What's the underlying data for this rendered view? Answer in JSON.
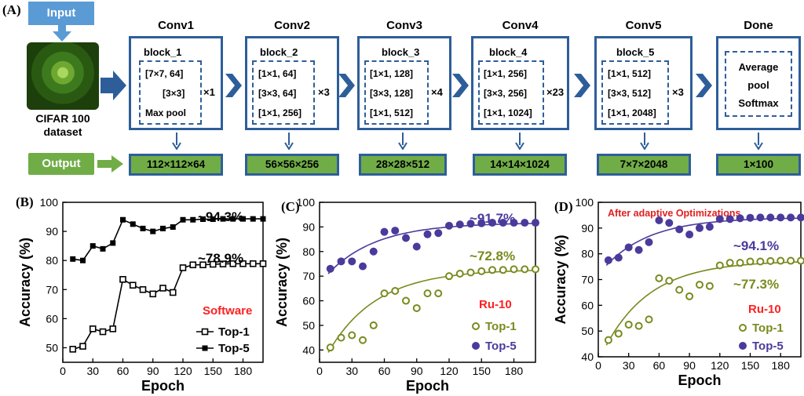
{
  "labels": {
    "A": "(A)",
    "B": "(B)",
    "C": "(C)",
    "D": "(D)"
  },
  "diagram": {
    "input_label": "Input",
    "dataset_line1": "CIFAR 100",
    "dataset_line2": "dataset",
    "output_label": "Output",
    "stages": [
      {
        "title": "Conv1",
        "block": "block_1",
        "entries": [
          "[7×7, 64]",
          "[3×3]",
          "Max pool"
        ],
        "mult": "×1",
        "out": "112×112×64"
      },
      {
        "title": "Conv2",
        "block": "block_2",
        "entries": [
          "[1×1, 64]",
          "[3×3, 64]",
          "[1×1, 256]"
        ],
        "mult": "×3",
        "out": "56×56×256"
      },
      {
        "title": "Conv3",
        "block": "block_3",
        "entries": [
          "[1×1, 128]",
          "[3×3, 128]",
          "[1×1, 512]"
        ],
        "mult": "×4",
        "out": "28×28×512"
      },
      {
        "title": "Conv4",
        "block": "block_4",
        "entries": [
          "[1×1, 256]",
          "[3×3, 256]",
          "[1×1, 1024]"
        ],
        "mult": "×23",
        "out": "14×14×1024"
      },
      {
        "title": "Conv5",
        "block": "block_5",
        "entries": [
          "[1×1, 512]",
          "[3×3, 512]",
          "[1×1, 2048]"
        ],
        "mult": "×3",
        "out": "7×7×2048"
      },
      {
        "title": "Done",
        "block": "",
        "entries": [
          "Average",
          "pool",
          "Softmax"
        ],
        "mult": "",
        "out": "1×100"
      }
    ]
  },
  "colors": {
    "blue_arrow": "#2e5e9a",
    "input_blue": "#5a9bd5",
    "output_green": "#70ad47",
    "series_olive": "#7a8a1e",
    "series_purple": "#4b3a9c",
    "software_red": "#ff2020"
  },
  "chart_data": [
    {
      "type": "line",
      "xlabel": "Epoch",
      "ylabel": "Accuracy (%)",
      "xlim": [
        0,
        200
      ],
      "ylim": [
        45,
        100
      ],
      "xticks": [
        0,
        30,
        60,
        90,
        120,
        150,
        180
      ],
      "yticks": [
        50,
        60,
        70,
        80,
        90,
        100
      ],
      "annotation": "Software",
      "top5_label": "~94.3%",
      "top1_label": "~78.9%",
      "series": [
        {
          "name": "Top-1",
          "marker": "open-square",
          "x": [
            10,
            20,
            30,
            40,
            50,
            60,
            70,
            80,
            90,
            100,
            110,
            120,
            130,
            140,
            150,
            160,
            170,
            180,
            190,
            200
          ],
          "y": [
            49.5,
            50.5,
            56.5,
            55.5,
            56.5,
            73.5,
            71.5,
            70,
            68.5,
            70.5,
            69,
            77.5,
            78.5,
            78.5,
            78.7,
            78.8,
            78.9,
            78.9,
            78.9,
            78.9
          ]
        },
        {
          "name": "Top-5",
          "marker": "filled-square",
          "x": [
            10,
            20,
            30,
            40,
            50,
            60,
            70,
            80,
            90,
            100,
            110,
            120,
            130,
            140,
            150,
            160,
            170,
            180,
            190,
            200
          ],
          "y": [
            80.5,
            80,
            85,
            84,
            86,
            94,
            92.5,
            91,
            90,
            91,
            91.5,
            94,
            94,
            94.2,
            94.2,
            94.3,
            94.3,
            94.3,
            94.3,
            94.3
          ]
        }
      ]
    },
    {
      "type": "scatter",
      "xlabel": "Epoch",
      "ylabel": "Accuracy (%)",
      "xlim": [
        0,
        200
      ],
      "ylim": [
        35,
        100
      ],
      "xticks": [
        0,
        30,
        60,
        90,
        120,
        150,
        180
      ],
      "yticks": [
        40,
        50,
        60,
        70,
        80,
        90,
        100
      ],
      "annotation": "Ru-10",
      "top5_label": "~91.7%",
      "top1_label": "~72.8%",
      "series": [
        {
          "name": "Top-1",
          "marker": "open-circle",
          "x": [
            10,
            20,
            30,
            40,
            50,
            60,
            70,
            80,
            90,
            100,
            110,
            120,
            130,
            140,
            150,
            160,
            170,
            180,
            190,
            200
          ],
          "y": [
            41,
            45,
            46,
            44,
            50,
            63,
            64,
            60,
            57,
            63,
            63,
            70,
            71,
            71.5,
            72,
            72.5,
            72.5,
            72.8,
            72.8,
            72.8
          ]
        },
        {
          "name": "Top-5",
          "marker": "filled-circle",
          "x": [
            10,
            20,
            30,
            40,
            50,
            60,
            70,
            80,
            90,
            100,
            110,
            120,
            130,
            140,
            150,
            160,
            170,
            180,
            190,
            200
          ],
          "y": [
            73,
            76,
            76,
            74,
            80,
            88,
            88.5,
            85.5,
            82,
            87,
            87.5,
            90.5,
            91,
            91.3,
            91.5,
            91.7,
            91.7,
            91.7,
            91.7,
            91.7
          ]
        }
      ]
    },
    {
      "type": "scatter",
      "title": "After adaptive Optimizations",
      "xlabel": "Epoch",
      "ylabel": "Accuracy (%)",
      "xlim": [
        0,
        200
      ],
      "ylim": [
        40,
        100
      ],
      "xticks": [
        0,
        30,
        60,
        90,
        120,
        150,
        180
      ],
      "yticks": [
        40,
        50,
        60,
        70,
        80,
        90,
        100
      ],
      "annotation": "Ru-10",
      "top5_label": "~94.1%",
      "top1_label": "~77.3%",
      "series": [
        {
          "name": "Top-1",
          "marker": "open-circle",
          "x": [
            10,
            20,
            30,
            40,
            50,
            60,
            70,
            80,
            90,
            100,
            110,
            120,
            130,
            140,
            150,
            160,
            170,
            180,
            190,
            200
          ],
          "y": [
            46.5,
            49,
            52.5,
            52,
            54.5,
            70.5,
            69.5,
            66,
            63.5,
            68,
            67.5,
            75.5,
            76.5,
            76.5,
            77,
            77,
            77.2,
            77.3,
            77.3,
            77.3
          ]
        },
        {
          "name": "Top-5",
          "marker": "filled-circle",
          "x": [
            10,
            20,
            30,
            40,
            50,
            60,
            70,
            80,
            90,
            100,
            110,
            120,
            130,
            140,
            150,
            160,
            170,
            180,
            190,
            200
          ],
          "y": [
            77.5,
            78.5,
            82.5,
            81.5,
            84.5,
            93,
            92,
            89.5,
            87.5,
            90,
            90.5,
            93.5,
            93.5,
            93.8,
            94,
            94.1,
            94.1,
            94.1,
            94.1,
            94.1
          ]
        }
      ]
    }
  ]
}
